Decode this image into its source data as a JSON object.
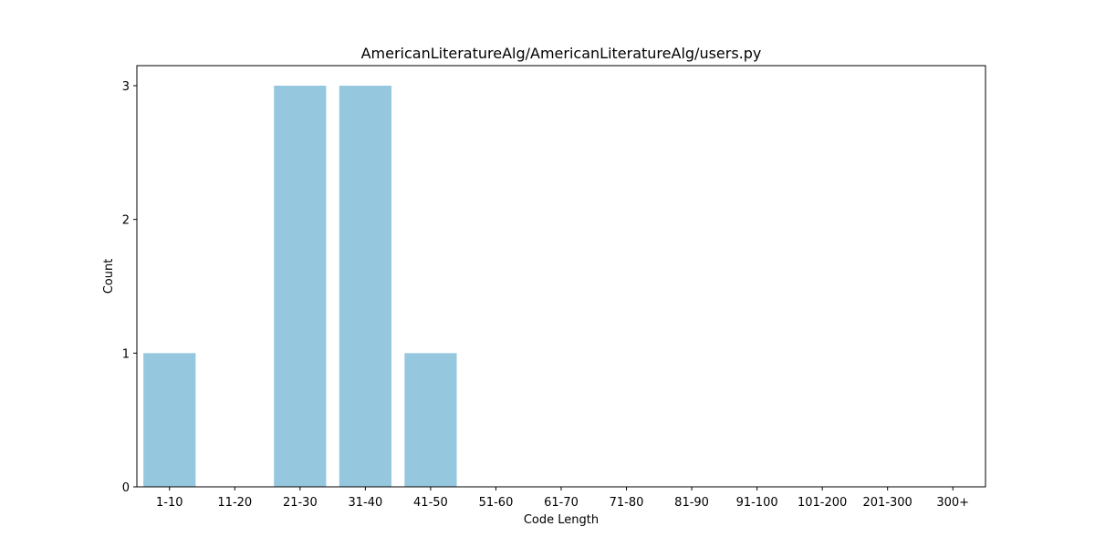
{
  "chart_data": {
    "type": "bar",
    "title": "AmericanLiteratureAlg/AmericanLiteratureAlg/users.py",
    "xlabel": "Code Length",
    "ylabel": "Count",
    "categories": [
      "1-10",
      "11-20",
      "21-30",
      "31-40",
      "41-50",
      "51-60",
      "61-70",
      "71-80",
      "81-90",
      "91-100",
      "101-200",
      "201-300",
      "300+"
    ],
    "values": [
      1,
      0,
      3,
      3,
      1,
      0,
      0,
      0,
      0,
      0,
      0,
      0,
      0
    ],
    "ylim": [
      0,
      3.15
    ],
    "yticks": [
      0,
      1,
      2,
      3
    ],
    "bar_color": "#95c8de",
    "grid": false,
    "legend": "none"
  }
}
